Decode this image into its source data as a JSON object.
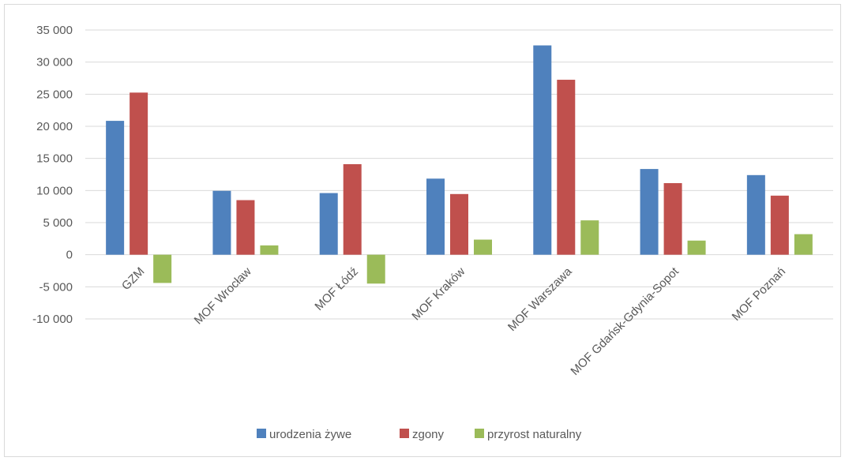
{
  "chart_data": {
    "type": "bar",
    "categories": [
      "GZM",
      "MOF Wrocław",
      "MOF Łódź",
      "MOF Kraków",
      "MOF Warszawa",
      "MOF Gdańsk-Gdynia-Sopot",
      "MOF Poznań"
    ],
    "series": [
      {
        "name": "urodzenia żywe",
        "color": "#4f81bd",
        "values": [
          20850,
          9950,
          9600,
          11850,
          32600,
          13350,
          12400
        ]
      },
      {
        "name": "zgony",
        "color": "#c0504d",
        "values": [
          25250,
          8500,
          14100,
          9450,
          27250,
          11150,
          9200
        ]
      },
      {
        "name": "przyrost naturalny",
        "color": "#9bbb59",
        "values": [
          -4400,
          1450,
          -4500,
          2350,
          5350,
          2200,
          3200
        ]
      }
    ],
    "ylim": [
      -10000,
      35000
    ],
    "yticks": [
      35000,
      30000,
      25000,
      20000,
      15000,
      10000,
      5000,
      0,
      -5000,
      -10000
    ],
    "ytick_labels": [
      "35 000",
      "30 000",
      "25 000",
      "20 000",
      "15 000",
      "10 000",
      "5 000",
      "0",
      "-5 000",
      "-10 000"
    ],
    "title": "",
    "xlabel": "",
    "ylabel": "",
    "grid": true,
    "legend_position": "bottom",
    "gridline_color": "#d9d9d9"
  }
}
